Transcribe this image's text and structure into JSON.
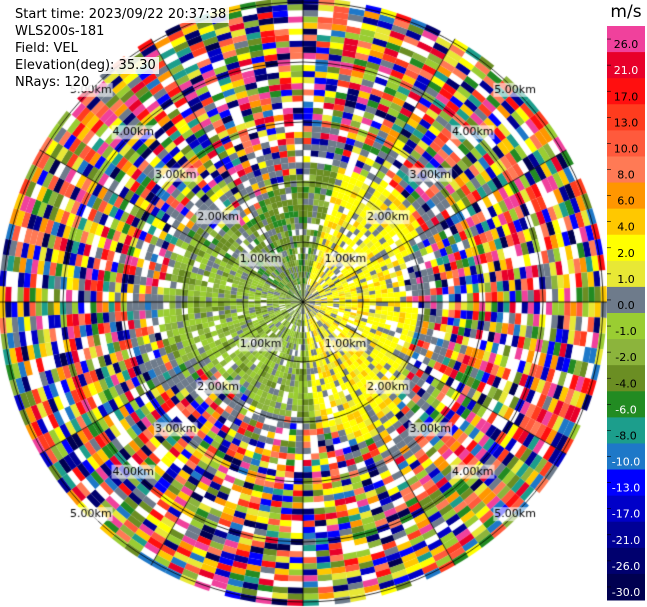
{
  "header": {
    "start_time": "Start time: 2023/09/22 20:37:38",
    "instrument": "WLS200s-181",
    "field": "Field: VEL",
    "elevation": "Elevation(deg): 35.30",
    "nrays": "NRays: 120"
  },
  "chart_data": {
    "type": "heatmap",
    "projection": "polar PPI",
    "field": "VEL",
    "units": "m/s",
    "n_rays": 120,
    "range_rings_km": [
      1,
      2,
      3,
      4,
      5
    ],
    "range_ring_labels": [
      "1.00km",
      "2.00km",
      "3.00km",
      "4.00km",
      "5.00km"
    ],
    "colorbar": {
      "unit_label": "m/s",
      "levels": [
        {
          "label": "26.0",
          "color": "#f0419c"
        },
        {
          "label": "21.0",
          "color": "#e8002a"
        },
        {
          "label": "17.0",
          "color": "#ff0f0f"
        },
        {
          "label": "13.0",
          "color": "#ff3c1e"
        },
        {
          "label": "10.0",
          "color": "#ff5a3c"
        },
        {
          "label": "8.0",
          "color": "#ff7a55"
        },
        {
          "label": "6.0",
          "color": "#ff9600"
        },
        {
          "label": "4.0",
          "color": "#ffc800"
        },
        {
          "label": "2.0",
          "color": "#ffff00"
        },
        {
          "label": "1.0",
          "color": "#e8e835"
        },
        {
          "label": "0.0",
          "color": "#6e7b8b"
        },
        {
          "label": "-1.0",
          "color": "#9acd32"
        },
        {
          "label": "-2.0",
          "color": "#8cb43c"
        },
        {
          "label": "-4.0",
          "color": "#6b8e23"
        },
        {
          "label": "-6.0",
          "color": "#228b22"
        },
        {
          "label": "-8.0",
          "color": "#1c9e8c"
        },
        {
          "label": "-10.0",
          "color": "#1e78c8"
        },
        {
          "label": "-13.0",
          "color": "#0000ff"
        },
        {
          "label": "-17.0",
          "color": "#0000c8"
        },
        {
          "label": "-21.0",
          "color": "#000096"
        },
        {
          "label": "-26.0",
          "color": "#00006e"
        },
        {
          "label": "-30.0",
          "color": "#000050"
        }
      ]
    }
  }
}
